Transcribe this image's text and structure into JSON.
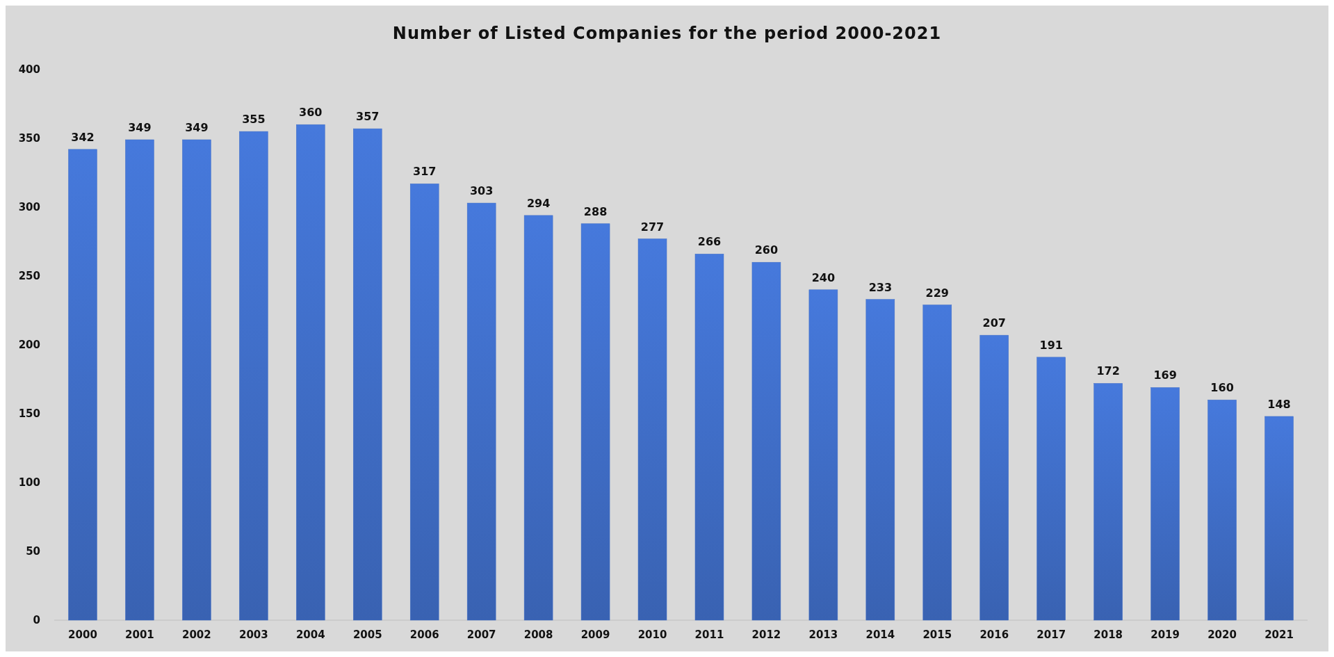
{
  "chart_data": {
    "type": "bar",
    "title": "Number of Listed Companies  for the period 2000-2021",
    "categories": [
      "2000",
      "2001",
      "2002",
      "2003",
      "2004",
      "2005",
      "2006",
      "2007",
      "2008",
      "2009",
      "2010",
      "2011",
      "2012",
      "2013",
      "2014",
      "2015",
      "2016",
      "2017",
      "2018",
      "2019",
      "2020",
      "2021"
    ],
    "values": [
      342,
      349,
      349,
      355,
      360,
      357,
      317,
      303,
      294,
      288,
      277,
      266,
      260,
      240,
      233,
      229,
      207,
      191,
      172,
      169,
      160,
      148
    ],
    "color": "#3f6dc6",
    "ylim": [
      0,
      400
    ],
    "yticks": [
      0,
      50,
      100,
      150,
      200,
      250,
      300,
      350,
      400
    ],
    "data_labels": true
  }
}
